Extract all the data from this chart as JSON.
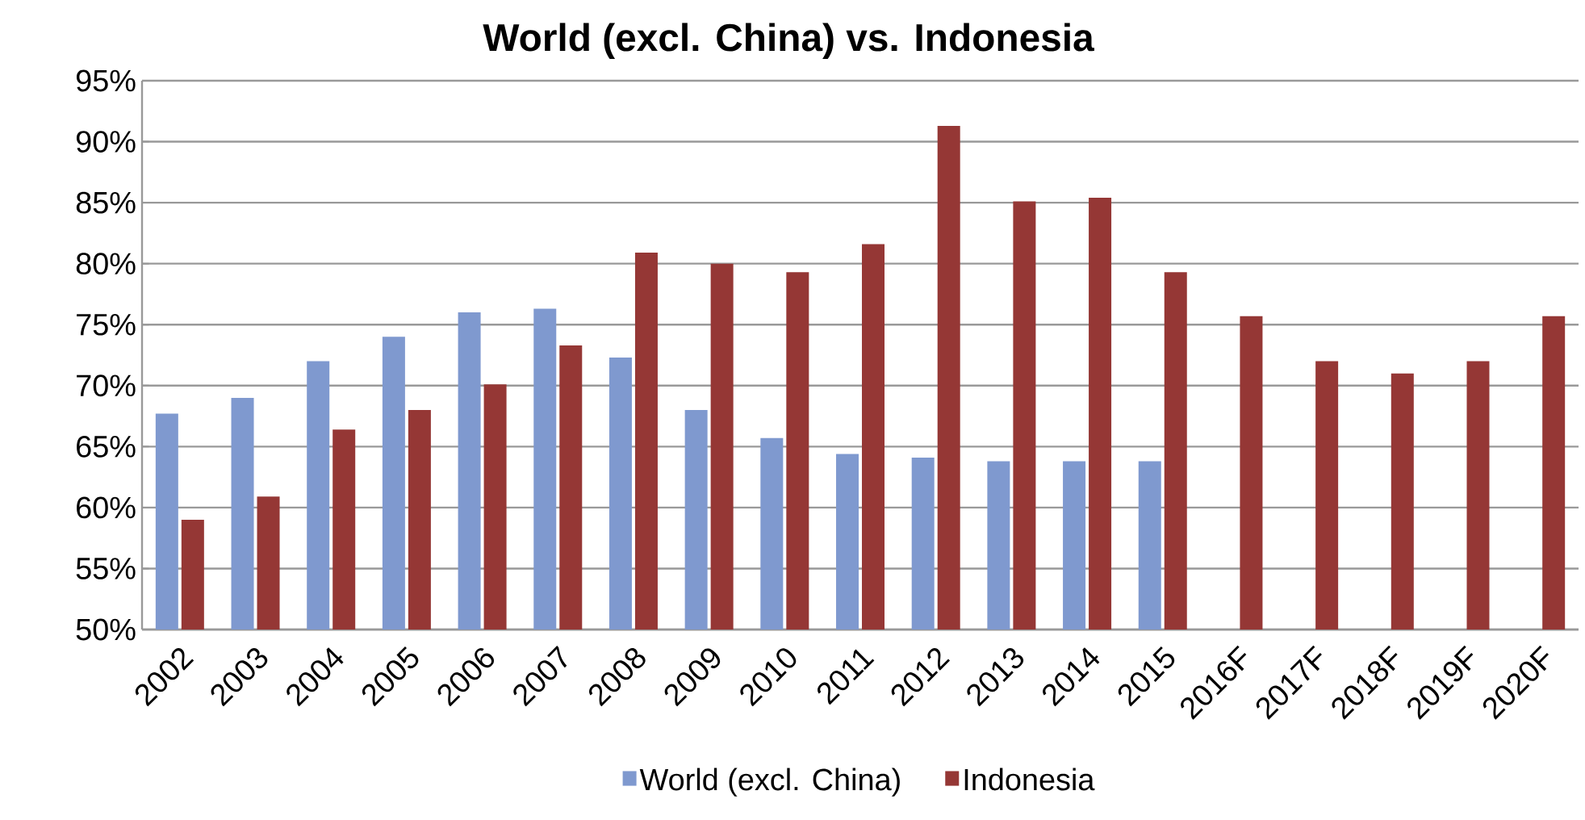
{
  "chart_data": {
    "type": "bar",
    "title": "World (excl. China) vs. Indonesia",
    "categories": [
      "2002",
      "2003",
      "2004",
      "2005",
      "2006",
      "2007",
      "2008",
      "2009",
      "2010",
      "2011",
      "2012",
      "2013",
      "2014",
      "2015",
      "2016F",
      "2017F",
      "2018F",
      "2019F",
      "2020F"
    ],
    "series": [
      {
        "name": "World (excl. China)",
        "color": "#7f99cf",
        "values": [
          67.7,
          69.0,
          72.0,
          74.0,
          76.0,
          76.3,
          72.3,
          68.0,
          65.7,
          64.4,
          64.1,
          63.8,
          63.8,
          63.8,
          null,
          null,
          null,
          null,
          null
        ]
      },
      {
        "name": "Indonesia",
        "color": "#953735",
        "values": [
          59.0,
          60.9,
          66.4,
          68.0,
          70.1,
          73.3,
          80.9,
          80.0,
          79.3,
          81.6,
          91.3,
          85.1,
          85.4,
          79.3,
          75.7,
          72.0,
          71.0,
          72.0,
          75.7
        ]
      }
    ],
    "ylim": [
      50,
      95
    ],
    "yticks": [
      {
        "value": 50,
        "label": "50%"
      },
      {
        "value": 55,
        "label": "55%"
      },
      {
        "value": 60,
        "label": "60%"
      },
      {
        "value": 65,
        "label": "65%"
      },
      {
        "value": 70,
        "label": "70%"
      },
      {
        "value": 75,
        "label": "75%"
      },
      {
        "value": 80,
        "label": "80%"
      },
      {
        "value": 85,
        "label": "85%"
      },
      {
        "value": 90,
        "label": "90%"
      },
      {
        "value": 95,
        "label": "95%"
      }
    ],
    "grid": "y",
    "legend": "bottom"
  }
}
